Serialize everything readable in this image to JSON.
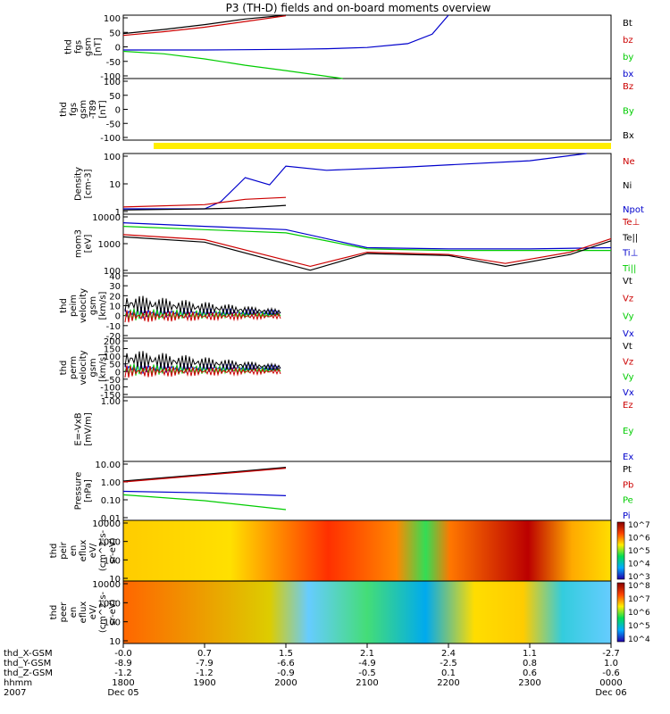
{
  "title": "P3 (TH-D) fields and on-board moments overview",
  "panels": [
    {
      "id": "fgs_gsm",
      "ylabel": [
        "thd",
        "fgs",
        "gsm",
        "[nT]"
      ],
      "ticks": [
        "100",
        "50",
        "0",
        "-50",
        "-100"
      ],
      "legend": [
        {
          "t": "Bt",
          "c": "#000000"
        },
        {
          "t": "bz",
          "c": "#cc0000"
        },
        {
          "t": "by",
          "c": "#00cc00"
        },
        {
          "t": "bx",
          "c": "#0000cc"
        }
      ]
    },
    {
      "id": "fgs_gsm_t89",
      "ylabel": [
        "thd",
        "fgs",
        "gsm",
        "-T89",
        "[nT]"
      ],
      "ticks": [
        "100",
        "50",
        "0",
        "-50",
        "-100"
      ],
      "legend": [
        {
          "t": "Bz",
          "c": "#cc0000"
        },
        {
          "t": "By",
          "c": "#00cc00"
        },
        {
          "t": "Bx",
          "c": "#000000"
        }
      ]
    },
    {
      "id": "density",
      "ylabel": [
        "Density",
        "[cm-3]"
      ],
      "ticks": [
        "100",
        "10",
        "1"
      ],
      "legend": [
        {
          "t": "Ne",
          "c": "#cc0000"
        },
        {
          "t": "Ni",
          "c": "#000000"
        },
        {
          "t": "Npot",
          "c": "#0000cc"
        }
      ]
    },
    {
      "id": "temperature",
      "ylabel": [
        "mom3",
        "[eV]"
      ],
      "ticks": [
        "10000",
        "1000",
        "100"
      ],
      "legend": [
        {
          "t": "Te⊥",
          "c": "#cc0000"
        },
        {
          "t": "Te||",
          "c": "#000000"
        },
        {
          "t": "Ti⊥",
          "c": "#0000cc"
        },
        {
          "t": "Ti||",
          "c": "#00cc00"
        }
      ]
    },
    {
      "id": "peim_velocity",
      "ylabel": [
        "thd",
        "peim",
        "velocity",
        "gsm",
        "[km/s]"
      ],
      "ticks": [
        "40",
        "30",
        "20",
        "10",
        "0",
        "-10",
        "-20"
      ],
      "legend": [
        {
          "t": "Vt",
          "c": "#000000"
        },
        {
          "t": "Vz",
          "c": "#cc0000"
        },
        {
          "t": "Vy",
          "c": "#00cc00"
        },
        {
          "t": "Vx",
          "c": "#0000cc"
        }
      ]
    },
    {
      "id": "perm_velocity",
      "ylabel": [
        "thd",
        "perm",
        "velocity",
        "gsm",
        "[km/s]"
      ],
      "ticks": [
        "200",
        "150",
        "100",
        "50",
        "0",
        "-50",
        "-100",
        "-150"
      ],
      "legend": [
        {
          "t": "Vt",
          "c": "#000000"
        },
        {
          "t": "Vz",
          "c": "#cc0000"
        },
        {
          "t": "Vy",
          "c": "#00cc00"
        },
        {
          "t": "Vx",
          "c": "#0000cc"
        }
      ]
    },
    {
      "id": "efield",
      "ylabel": [
        "E=-VxB",
        "[mV/m]"
      ],
      "ticks": [
        "1.00"
      ],
      "legend": [
        {
          "t": "Ez",
          "c": "#cc0000"
        },
        {
          "t": "Ey",
          "c": "#00cc00"
        },
        {
          "t": "Ex",
          "c": "#0000cc"
        }
      ]
    },
    {
      "id": "pressure",
      "ylabel": [
        "Pressure",
        "[nPa]"
      ],
      "ticks": [
        "10.00",
        "1.00",
        "0.10",
        "0.01"
      ],
      "legend": [
        {
          "t": "Pt",
          "c": "#000000"
        },
        {
          "t": "Pb",
          "c": "#cc0000"
        },
        {
          "t": "Pe",
          "c": "#00cc00"
        },
        {
          "t": "Pi",
          "c": "#0000cc"
        }
      ]
    },
    {
      "id": "peir_efluxs",
      "ylabel": [
        "thd",
        "peir",
        "en",
        "eflux",
        "eV/",
        "(cm^2-s-",
        "sr-eV)"
      ],
      "ticks": [
        "10000",
        "1000",
        "100",
        "10"
      ],
      "legend": [],
      "colorbar": [
        "10^7",
        "10^6",
        "10^5",
        "10^4",
        "10^3"
      ]
    },
    {
      "id": "peer_efluxs",
      "ylabel": [
        "thd",
        "peer",
        "en",
        "eflux",
        "eV/",
        "(cm^2-s-",
        "sr-eV)"
      ],
      "ticks": [
        "10000",
        "1000",
        "100",
        "10"
      ],
      "legend": [],
      "colorbar": [
        "10^8",
        "10^7",
        "10^6",
        "10^5",
        "10^4"
      ]
    }
  ],
  "xaxis": {
    "row_labels": [
      "thd_X-GSM",
      "thd_Y-GSM",
      "thd_Z-GSM",
      "hhmm",
      "2007"
    ],
    "columns": [
      {
        "x": "-0.0",
        "y": "-8.9",
        "z": "-1.2",
        "hhmm": "1800",
        "date": "Dec 05"
      },
      {
        "x": "0.7",
        "y": "-7.9",
        "z": "-1.2",
        "hhmm": "1900",
        "date": ""
      },
      {
        "x": "1.5",
        "y": "-6.6",
        "z": "-0.9",
        "hhmm": "2000",
        "date": ""
      },
      {
        "x": "2.1",
        "y": "-4.9",
        "z": "-0.5",
        "hhmm": "2100",
        "date": ""
      },
      {
        "x": "2.4",
        "y": "-2.5",
        "z": "0.1",
        "hhmm": "2200",
        "date": ""
      },
      {
        "x": "1.1",
        "y": "0.8",
        "z": "0.6",
        "hhmm": "2300",
        "date": ""
      },
      {
        "x": "-2.7",
        "y": "1.0",
        "z": "-0.6",
        "hhmm": "0000",
        "date": "Dec 06"
      }
    ]
  },
  "chart_data": {
    "type": "line",
    "title": "P3 (TH-D) fields and on-board moments overview",
    "x_unit": "hhmm",
    "xlim": [
      "1800",
      "0000"
    ],
    "series": [
      {
        "name": "Bt",
        "panel": "fgs_gsm",
        "color": "#000000",
        "x": [
          18.0,
          18.5,
          19.0,
          19.5,
          20.0
        ],
        "values": [
          42,
          55,
          70,
          88,
          100
        ]
      },
      {
        "name": "bz",
        "panel": "fgs_gsm",
        "color": "#cc0000",
        "x": [
          18.0,
          18.5,
          19.0,
          19.5,
          20.0
        ],
        "values": [
          36,
          48,
          62,
          80,
          98
        ]
      },
      {
        "name": "by",
        "panel": "fgs_gsm",
        "color": "#00cc00",
        "x": [
          18.0,
          18.5,
          19.0,
          19.5,
          20.0,
          20.7
        ],
        "values": [
          -14,
          -22,
          -38,
          -58,
          -75,
          -100
        ]
      },
      {
        "name": "bx",
        "panel": "fgs_gsm",
        "color": "#0000cc",
        "x": [
          18.0,
          19.0,
          20.0,
          20.5,
          21.0,
          21.5,
          21.8,
          22.0
        ],
        "values": [
          -10,
          -10,
          -8,
          -6,
          -2,
          10,
          40,
          100
        ]
      },
      {
        "name": "Npot",
        "panel": "density",
        "color": "#0000cc",
        "x": [
          18.0,
          19.0,
          19.2,
          19.5,
          19.8,
          20.0,
          20.5,
          21.5,
          23.0,
          23.7
        ],
        "values": [
          1.0,
          1.0,
          2.0,
          20,
          10,
          60,
          40,
          55,
          100,
          200
        ]
      },
      {
        "name": "Ne",
        "panel": "density",
        "color": "#cc0000",
        "x": [
          18.0,
          19.0,
          19.5,
          20.0
        ],
        "values": [
          1.2,
          1.5,
          2.5,
          3.0
        ]
      },
      {
        "name": "Ni",
        "panel": "density",
        "color": "#000000",
        "x": [
          18.0,
          19.0,
          19.5,
          20.0
        ],
        "values": [
          0.9,
          1.0,
          1.1,
          1.4
        ]
      },
      {
        "name": "Ti⊥",
        "panel": "temperature",
        "color": "#0000cc",
        "x": [
          18.0,
          19.0,
          20.0,
          21.0,
          22.0,
          23.0,
          24.0
        ],
        "values": [
          5000,
          3500,
          2500,
          400,
          350,
          350,
          400
        ]
      },
      {
        "name": "Ti||",
        "panel": "temperature",
        "color": "#00cc00",
        "x": [
          18.0,
          19.0,
          20.0,
          21.0,
          22.0,
          23.0,
          24.0
        ],
        "values": [
          3500,
          2500,
          1800,
          350,
          300,
          300,
          300
        ]
      },
      {
        "name": "Te⊥",
        "panel": "temperature",
        "color": "#cc0000",
        "x": [
          18.0,
          19.0,
          20.3,
          21.0,
          22.0,
          22.7,
          23.5,
          24.0
        ],
        "values": [
          1500,
          900,
          60,
          250,
          200,
          80,
          250,
          1000
        ]
      },
      {
        "name": "Te||",
        "panel": "temperature",
        "color": "#000000",
        "x": [
          18.0,
          19.0,
          20.3,
          21.0,
          22.0,
          22.7,
          23.5,
          24.0
        ],
        "values": [
          1200,
          700,
          40,
          220,
          180,
          60,
          200,
          800
        ]
      },
      {
        "name": "Pt",
        "panel": "pressure",
        "color": "#000000",
        "x": [
          18.0,
          19.0,
          20.0
        ],
        "values": [
          1.0,
          2.2,
          5.0
        ]
      },
      {
        "name": "Pb",
        "panel": "pressure",
        "color": "#cc0000",
        "x": [
          18.0,
          19.0,
          20.0
        ],
        "values": [
          0.9,
          2.0,
          4.5
        ]
      },
      {
        "name": "Pi",
        "panel": "pressure",
        "color": "#0000cc",
        "x": [
          18.0,
          19.0,
          20.0
        ],
        "values": [
          0.3,
          0.25,
          0.18
        ]
      },
      {
        "name": "Pe",
        "panel": "pressure",
        "color": "#00cc00",
        "x": [
          18.0,
          19.0,
          20.0
        ],
        "values": [
          0.2,
          0.1,
          0.035
        ]
      }
    ]
  }
}
